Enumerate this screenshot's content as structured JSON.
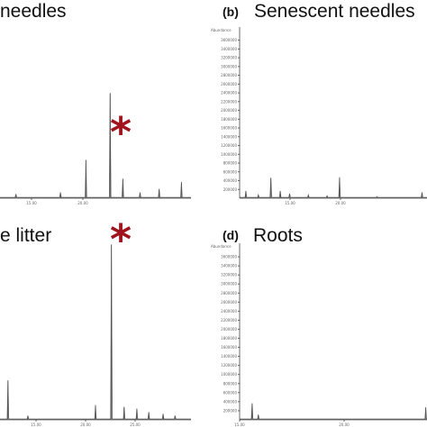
{
  "panels": [
    {
      "letter": "",
      "title": "needles",
      "annotation": "*",
      "chart_data": {
        "type": "line",
        "title": "needles",
        "y_ticks": [],
        "x_ticks": [
          "15.00",
          "20.00"
        ],
        "peaks": [
          [
            2.5,
            0.02
          ],
          [
            9.5,
            0.03
          ],
          [
            13.5,
            0.22
          ],
          [
            17.3,
            0.61
          ],
          [
            19.3,
            0.11
          ],
          [
            22.0,
            0.03
          ],
          [
            25.0,
            0.05
          ],
          [
            28.5,
            0.09
          ]
        ],
        "ylim": [
          0,
          1
        ],
        "xlim": [
          0,
          30
        ],
        "annotation": "*"
      }
    },
    {
      "letter": "(b)",
      "title": "Senescent needles",
      "annotation": "",
      "chart_data": {
        "type": "line",
        "title": "Senescent needles",
        "ylabel": "Abundance",
        "y_ticks": [
          "200000",
          "400000",
          "600000",
          "800000",
          "1000000",
          "1200000",
          "1400000",
          "1600000",
          "1800000",
          "2000000",
          "2200000",
          "2400000",
          "2600000",
          "2800000",
          "3000000",
          "3200000",
          "3400000",
          "3600000",
          "3800000"
        ],
        "x_ticks": [
          "15.00",
          "20.00"
        ],
        "peaks": [
          [
            1.0,
            150000
          ],
          [
            3.0,
            60000
          ],
          [
            5.0,
            450000
          ],
          [
            6.5,
            150000
          ],
          [
            8.0,
            90000
          ],
          [
            11.0,
            60000
          ],
          [
            14.0,
            40000
          ],
          [
            16.0,
            460000
          ],
          [
            22.0,
            20000
          ],
          [
            29.2,
            120000
          ]
        ],
        "ylim": [
          0,
          3900000
        ],
        "xlim": [
          0,
          30
        ],
        "annotation": ""
      }
    },
    {
      "letter": "",
      "title": "e litter",
      "annotation": "*",
      "chart_data": {
        "type": "line",
        "title": "e litter",
        "y_ticks": [],
        "x_ticks": [
          "15.00",
          "20.00",
          "25.00"
        ],
        "peaks": [
          [
            1.0,
            0.22
          ],
          [
            3.5,
            0.02
          ],
          [
            12.0,
            0.08
          ],
          [
            14.0,
            0.99
          ],
          [
            15.6,
            0.07
          ],
          [
            17.2,
            0.06
          ],
          [
            18.7,
            0.04
          ],
          [
            20.5,
            0.03
          ],
          [
            22.0,
            0.02
          ]
        ],
        "ylim": [
          0,
          1
        ],
        "xlim": [
          0,
          24
        ],
        "annotation": "*"
      }
    },
    {
      "letter": "(d)",
      "title": "Roots",
      "annotation": "",
      "chart_data": {
        "type": "line",
        "title": "Roots",
        "ylabel": "Abundance",
        "y_ticks": [
          "200000",
          "400000",
          "600000",
          "800000",
          "1000000",
          "1200000",
          "1400000",
          "1600000",
          "1800000",
          "2000000",
          "2200000",
          "2400000",
          "2600000",
          "2800000",
          "3000000",
          "3200000",
          "3400000",
          "3600000",
          "3800000"
        ],
        "x_ticks": [
          "15.00",
          "20.00"
        ],
        "peaks": [
          [
            2.0,
            350000
          ],
          [
            3.0,
            100000
          ],
          [
            29.8,
            260000
          ]
        ],
        "ylim": [
          0,
          3900000
        ],
        "xlim": [
          0,
          30
        ],
        "annotation": ""
      }
    }
  ]
}
